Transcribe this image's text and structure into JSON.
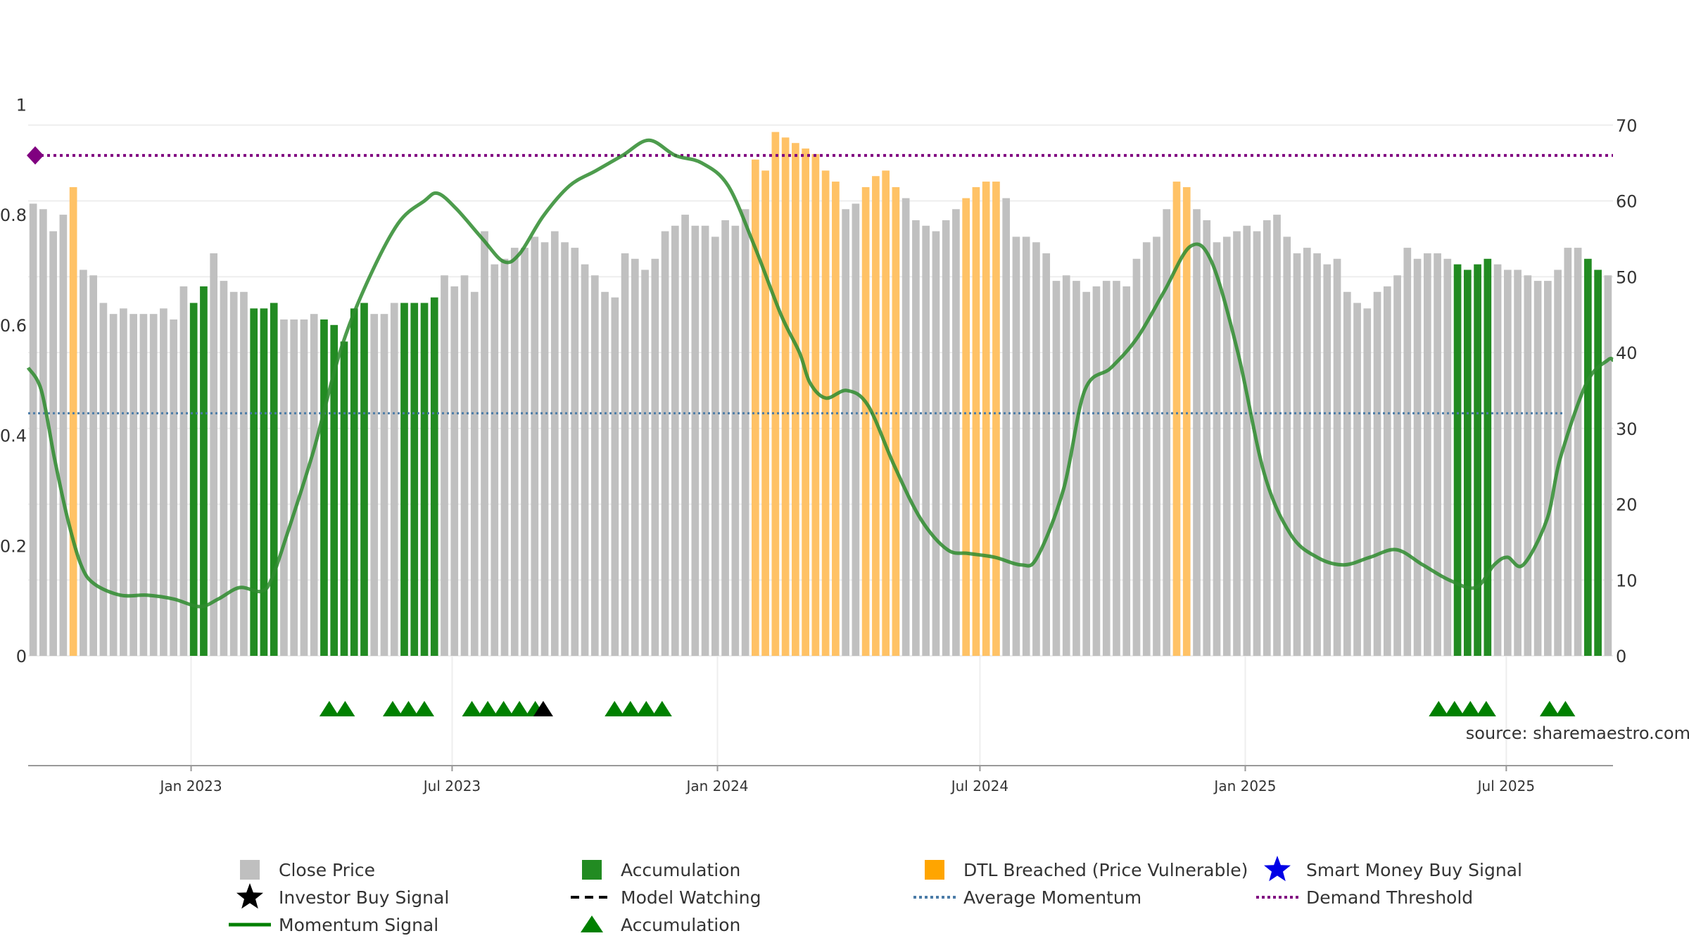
{
  "chart_data": {
    "type": "bar",
    "source_label": "source: sharemaestro.com",
    "x_tick_labels": [
      "Jan 2023",
      "Jul 2023",
      "Jan 2024",
      "Jul 2024",
      "Jan 2025",
      "Jul 2025"
    ],
    "x_tick_dates": [
      "2023-01-01",
      "2023-07-01",
      "2024-01-01",
      "2024-07-01",
      "2025-01-01",
      "2025-07-01"
    ],
    "x_range": [
      "2022-09-10",
      "2025-09-13"
    ],
    "left_axis": {
      "range": [
        0,
        1.1
      ],
      "ticks": [
        0,
        0.2,
        0.4,
        0.6,
        0.8,
        1
      ],
      "tick_labels": [
        "0",
        "0.2",
        "0.4",
        "0.6",
        "0.8",
        "1"
      ]
    },
    "right_axis": {
      "range": [
        0,
        80
      ],
      "ticks": [
        0,
        10,
        20,
        30,
        40,
        50,
        60,
        70
      ],
      "tick_labels": [
        "0",
        "10",
        "20",
        "30",
        "40",
        "50",
        "60",
        "70"
      ]
    },
    "grid": true,
    "colors": {
      "close": "#c0c0c0",
      "accumulation": "#228b22",
      "dtl": "#ffc266",
      "momentum": "#2e8b2e",
      "momentum_strong": "#008000",
      "average_momentum": "#4a7ba7",
      "demand_threshold": "#800080",
      "investor_signal": "#000000",
      "smart_money": "#1010e0",
      "accum_marker": "#008000"
    },
    "close_price": [
      0.82,
      0.81,
      0.77,
      0.8,
      0.85,
      0.7,
      0.69,
      0.64,
      0.62,
      0.63,
      0.62,
      0.62,
      0.62,
      0.63,
      0.61,
      0.67,
      0.64,
      0.67,
      0.73,
      0.68,
      0.66,
      0.66,
      0.63,
      0.63,
      0.64,
      0.61,
      0.61,
      0.61,
      0.62,
      0.61,
      0.6,
      0.57,
      0.63,
      0.64,
      0.62,
      0.62,
      0.64,
      0.64,
      0.64,
      0.64,
      0.65,
      0.69,
      0.67,
      0.69,
      0.66,
      0.77,
      0.71,
      0.72,
      0.74,
      0.74,
      0.76,
      0.75,
      0.77,
      0.75,
      0.74,
      0.71,
      0.69,
      0.66,
      0.65,
      0.73,
      0.72,
      0.7,
      0.72,
      0.77,
      0.78,
      0.8,
      0.78,
      0.78,
      0.76,
      0.79,
      0.78,
      0.81,
      0.9,
      0.88,
      0.95,
      0.94,
      0.93,
      0.92,
      0.91,
      0.88,
      0.86,
      0.81,
      0.82,
      0.85,
      0.87,
      0.88,
      0.85,
      0.83,
      0.79,
      0.78,
      0.77,
      0.79,
      0.81,
      0.83,
      0.85,
      0.86,
      0.86,
      0.83,
      0.76,
      0.76,
      0.75,
      0.73,
      0.68,
      0.69,
      0.68,
      0.66,
      0.67,
      0.68,
      0.68,
      0.67,
      0.72,
      0.75,
      0.76,
      0.81,
      0.86,
      0.85,
      0.81,
      0.79,
      0.75,
      0.76,
      0.77,
      0.78,
      0.77,
      0.79,
      0.8,
      0.76,
      0.73,
      0.74,
      0.73,
      0.71,
      0.72,
      0.66,
      0.64,
      0.63,
      0.66,
      0.67,
      0.69,
      0.74,
      0.72,
      0.73,
      0.73,
      0.72,
      0.71,
      0.7,
      0.71,
      0.72,
      0.71,
      0.7,
      0.7,
      0.69,
      0.68,
      0.68,
      0.7,
      0.74,
      0.74,
      0.72,
      0.7,
      0.69
    ],
    "bar_kind": [
      "c",
      "c",
      "c",
      "c",
      "d",
      "c",
      "c",
      "c",
      "c",
      "c",
      "c",
      "c",
      "c",
      "c",
      "c",
      "c",
      "a",
      "a",
      "c",
      "c",
      "c",
      "c",
      "a",
      "a",
      "a",
      "c",
      "c",
      "c",
      "c",
      "a",
      "a",
      "a",
      "a",
      "a",
      "c",
      "c",
      "c",
      "a",
      "a",
      "a",
      "a",
      "c",
      "c",
      "c",
      "c",
      "c",
      "c",
      "c",
      "c",
      "c",
      "c",
      "c",
      "c",
      "c",
      "c",
      "c",
      "c",
      "c",
      "c",
      "c",
      "c",
      "c",
      "c",
      "c",
      "c",
      "c",
      "c",
      "c",
      "c",
      "c",
      "c",
      "c",
      "d",
      "d",
      "d",
      "d",
      "d",
      "d",
      "d",
      "d",
      "d",
      "c",
      "c",
      "d",
      "d",
      "d",
      "d",
      "c",
      "c",
      "c",
      "c",
      "c",
      "c",
      "d",
      "d",
      "d",
      "d",
      "c",
      "c",
      "c",
      "c",
      "c",
      "c",
      "c",
      "c",
      "c",
      "c",
      "c",
      "c",
      "c",
      "c",
      "c",
      "c",
      "c",
      "d",
      "d",
      "c",
      "c",
      "c",
      "c",
      "c",
      "c",
      "c",
      "c",
      "c",
      "c",
      "c",
      "c",
      "c",
      "c",
      "c",
      "c",
      "c",
      "c",
      "c",
      "c",
      "c",
      "c",
      "c",
      "c",
      "c",
      "c",
      "a",
      "a",
      "a",
      "a",
      "c",
      "c",
      "c",
      "c",
      "c",
      "c",
      "c",
      "c",
      "c",
      "a",
      "a",
      "c",
      "c",
      "c",
      "c",
      "c"
    ],
    "momentum": {
      "name": "Momentum Signal",
      "points": [
        [
          0,
          38
        ],
        [
          5,
          35
        ],
        [
          10,
          26
        ],
        [
          15,
          18
        ],
        [
          20,
          12
        ],
        [
          25,
          9.5
        ],
        [
          35,
          8
        ],
        [
          45,
          8
        ],
        [
          55,
          7.5
        ],
        [
          65,
          6.5
        ],
        [
          72,
          7.5
        ],
        [
          80,
          9
        ],
        [
          88,
          8.5
        ],
        [
          92,
          10
        ],
        [
          98,
          16
        ],
        [
          108,
          27
        ],
        [
          118,
          40
        ],
        [
          128,
          49
        ],
        [
          140,
          57
        ],
        [
          150,
          60
        ],
        [
          155,
          61
        ],
        [
          162,
          59
        ],
        [
          172,
          55
        ],
        [
          180,
          52
        ],
        [
          186,
          53
        ],
        [
          195,
          58
        ],
        [
          205,
          62
        ],
        [
          215,
          64
        ],
        [
          225,
          66
        ],
        [
          235,
          68
        ],
        [
          245,
          66
        ],
        [
          255,
          65
        ],
        [
          265,
          62
        ],
        [
          275,
          54
        ],
        [
          285,
          45
        ],
        [
          292,
          40
        ],
        [
          296,
          36
        ],
        [
          302,
          34
        ],
        [
          310,
          35
        ],
        [
          318,
          33
        ],
        [
          328,
          25
        ],
        [
          338,
          18
        ],
        [
          348,
          14
        ],
        [
          356,
          13.5
        ],
        [
          366,
          13
        ],
        [
          376,
          12
        ],
        [
          382,
          13
        ],
        [
          392,
          22
        ],
        [
          400,
          35
        ],
        [
          410,
          38
        ],
        [
          420,
          42
        ],
        [
          430,
          48
        ],
        [
          440,
          54
        ],
        [
          448,
          52
        ],
        [
          458,
          40
        ],
        [
          468,
          24
        ],
        [
          478,
          16
        ],
        [
          488,
          13
        ],
        [
          498,
          12
        ],
        [
          508,
          13
        ],
        [
          518,
          14
        ],
        [
          528,
          12
        ],
        [
          538,
          10
        ],
        [
          548,
          9
        ],
        [
          555,
          12
        ],
        [
          560,
          13
        ],
        [
          566,
          12
        ],
        [
          575,
          18
        ],
        [
          580,
          26
        ],
        [
          590,
          36
        ],
        [
          598,
          39
        ],
        [
          600,
          39
        ]
      ]
    },
    "average_momentum_value": 32,
    "demand_threshold_value": 66,
    "accumulation_markers": [
      0.19,
      0.2,
      0.23,
      0.24,
      0.25,
      0.28,
      0.29,
      0.3,
      0.31,
      0.32,
      0.37,
      0.38,
      0.39,
      0.4,
      0.89,
      0.9,
      0.91,
      0.92,
      0.96,
      0.97
    ],
    "investor_markers": [
      0.325
    ],
    "legend": [
      {
        "label": "Close Price",
        "symbol": "square",
        "color": "#bfbfbf"
      },
      {
        "label": "Accumulation",
        "symbol": "square",
        "color": "#228b22"
      },
      {
        "label": "DTL Breached (Price Vulnerable)",
        "symbol": "square",
        "color": "#ffa500"
      },
      {
        "label": "Smart Money Buy Signal",
        "symbol": "star",
        "color": "#0000e6"
      },
      {
        "label": "Investor Buy Signal",
        "symbol": "star",
        "color": "#000000"
      },
      {
        "label": "Model Watching",
        "symbol": "dashed",
        "color": "#000000"
      },
      {
        "label": "Average Momentum",
        "symbol": "dotted",
        "color": "#4a7ba7"
      },
      {
        "label": "Demand Threshold",
        "symbol": "dotted",
        "color": "#800080"
      },
      {
        "label": "Momentum Signal",
        "symbol": "line",
        "color": "#008000"
      },
      {
        "label": "Accumulation",
        "symbol": "triangle",
        "color": "#008000"
      }
    ]
  }
}
